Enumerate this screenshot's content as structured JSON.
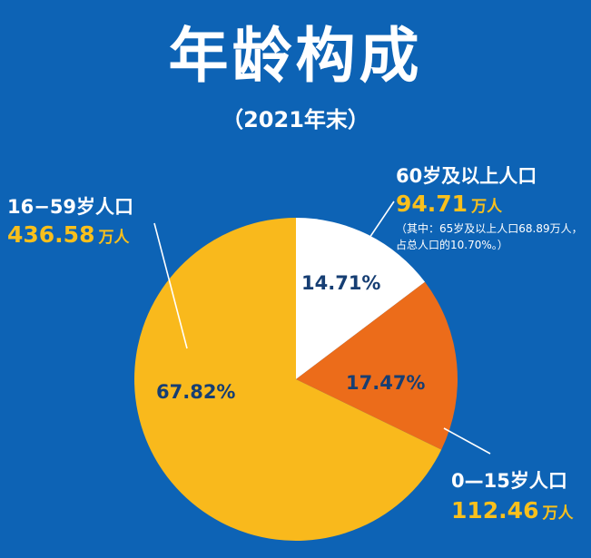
{
  "header": {
    "title": "年龄构成",
    "subtitle": "（2021年末）"
  },
  "labels": {
    "senior": {
      "category": "60岁及以上人口",
      "value": "94.71",
      "unit": "万人",
      "note_line1": "（其中：65岁及以上人口68.89万人，",
      "note_line2": "占总人口的10.70%。）"
    },
    "working": {
      "category": "16−59岁人口",
      "value": "436.58",
      "unit": "万人"
    },
    "children": {
      "category": "0—15岁人口",
      "value": "112.46",
      "unit": "万人"
    }
  },
  "percent_labels": {
    "senior": "14.71%",
    "children": "17.47%",
    "working": "67.82%"
  },
  "colors": {
    "background": "#0d63b5",
    "senior": "#ffffff",
    "children": "#ec6c1a",
    "working": "#f9b91c",
    "accent_text": "#f9c01c",
    "percent_text": "#163e73"
  },
  "chart_data": {
    "type": "pie",
    "title": "年龄构成",
    "subtitle": "（2021年末）",
    "unit": "万人",
    "slices": [
      {
        "label": "60岁及以上人口",
        "value": 94.71,
        "percent": 14.71
      },
      {
        "label": "0—15岁人口",
        "value": 112.46,
        "percent": 17.47
      },
      {
        "label": "16−59岁人口",
        "value": 436.58,
        "percent": 67.82
      }
    ],
    "annotation": "（其中：65岁及以上人口68.89万人，占总人口的10.70%。）"
  }
}
